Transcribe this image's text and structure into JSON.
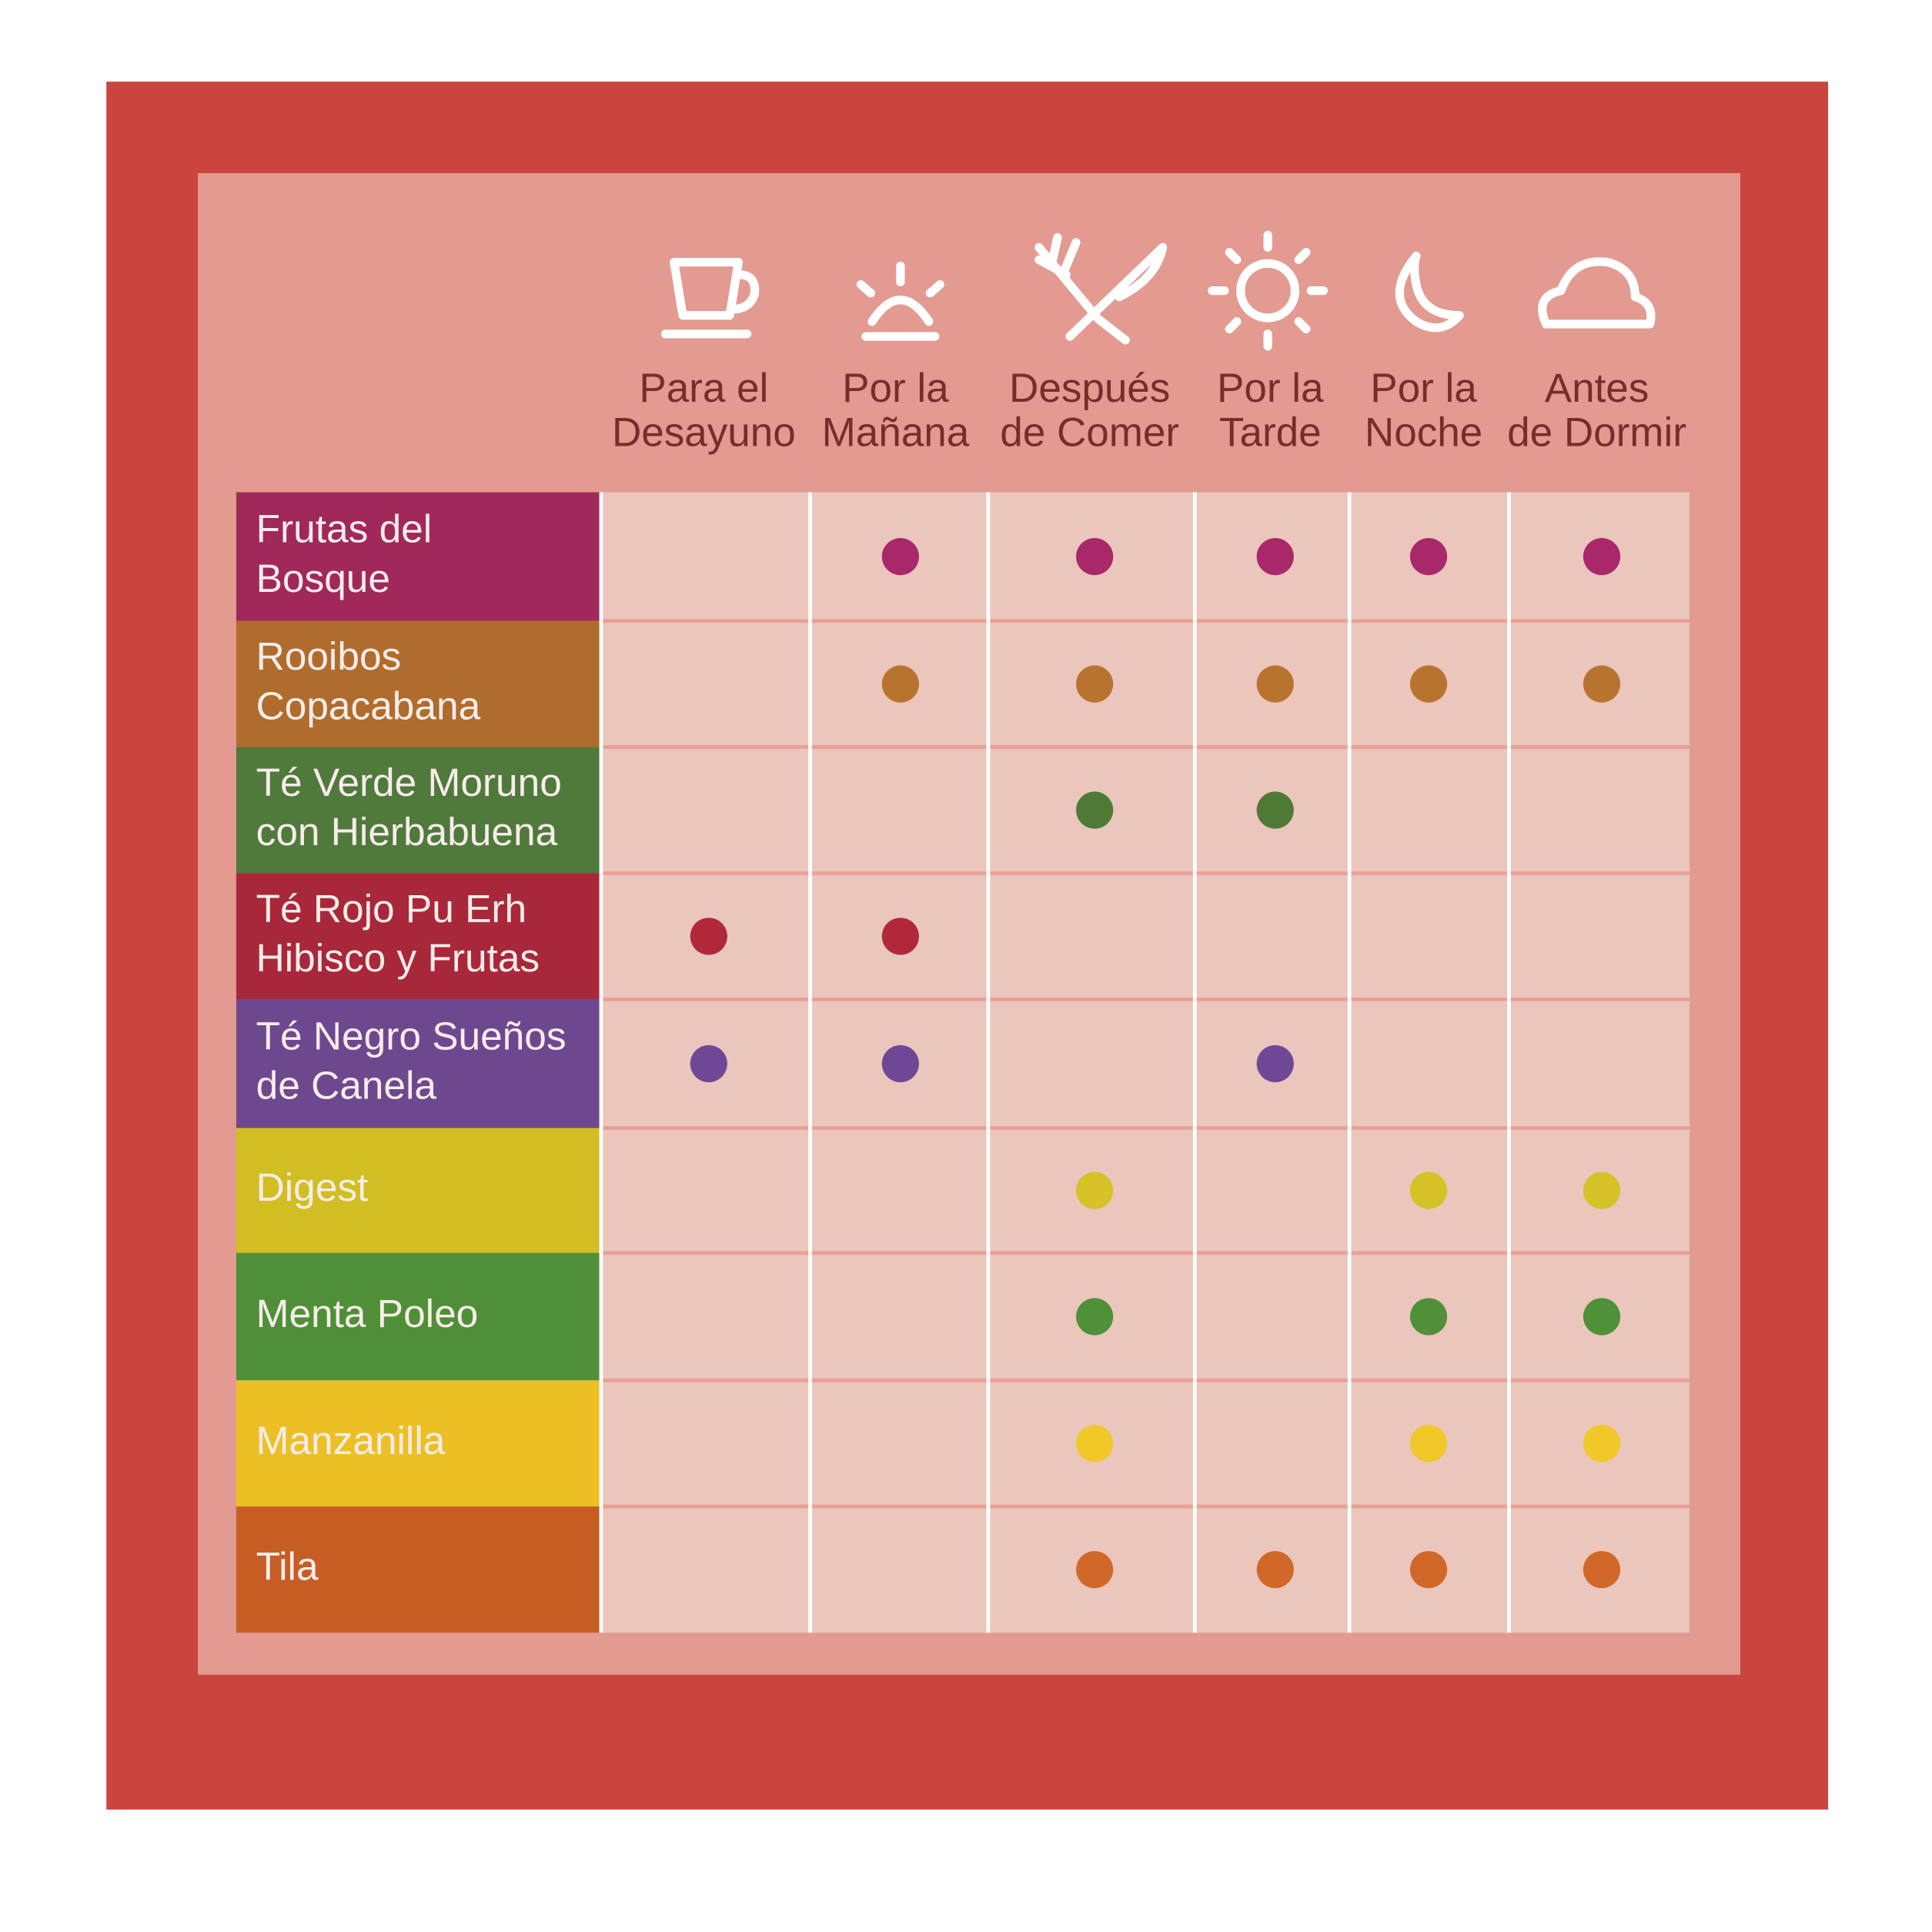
{
  "columns": [
    [
      "Para el",
      "Desayuno"
    ],
    [
      "Por la",
      "Mañana"
    ],
    [
      "Después",
      "de Comer"
    ],
    [
      "Por la",
      "Tarde"
    ],
    [
      "Por la",
      "Noche"
    ],
    [
      "Antes",
      "de Dormir"
    ]
  ],
  "rows": [
    {
      "name": [
        "Frutas del",
        "Bosque"
      ],
      "color": "#a0285a",
      "dot": "#a8286a",
      "times": [
        false,
        true,
        true,
        true,
        true,
        true
      ]
    },
    {
      "name": [
        "Rooibos",
        "Copacabana"
      ],
      "color": "#b06c2c",
      "dot": "#b8742e",
      "times": [
        false,
        true,
        true,
        true,
        true,
        true
      ]
    },
    {
      "name": [
        "Té Verde Moruno",
        "con Hierbabuena"
      ],
      "color": "#4f7a3c",
      "dot": "#4e7a36",
      "times": [
        false,
        false,
        true,
        true,
        false,
        false
      ]
    },
    {
      "name": [
        "Té Rojo Pu Erh",
        "Hibisco y Frutas"
      ],
      "color": "#a8283a",
      "dot": "#b0283a",
      "times": [
        true,
        true,
        false,
        false,
        false,
        false
      ]
    },
    {
      "name": [
        "Té Negro Sueños",
        "de Canela"
      ],
      "color": "#6e488e",
      "dot": "#6e4896",
      "times": [
        true,
        true,
        false,
        true,
        false,
        false
      ]
    },
    {
      "name": [
        "Digest"
      ],
      "color": "#d0be22",
      "dot": "#d4c226",
      "times": [
        false,
        false,
        true,
        false,
        true,
        true
      ]
    },
    {
      "name": [
        "Menta Poleo"
      ],
      "color": "#4f8f38",
      "dot": "#4f9038",
      "times": [
        false,
        false,
        true,
        false,
        true,
        true
      ]
    },
    {
      "name": [
        "Manzanilla"
      ],
      "color": "#ecc025",
      "dot": "#f0c828",
      "times": [
        false,
        false,
        true,
        false,
        true,
        true
      ]
    },
    {
      "name": [
        "Tila"
      ],
      "color": "#c65e24",
      "dot": "#d0682a",
      "times": [
        false,
        false,
        true,
        true,
        true,
        true
      ]
    }
  ]
}
